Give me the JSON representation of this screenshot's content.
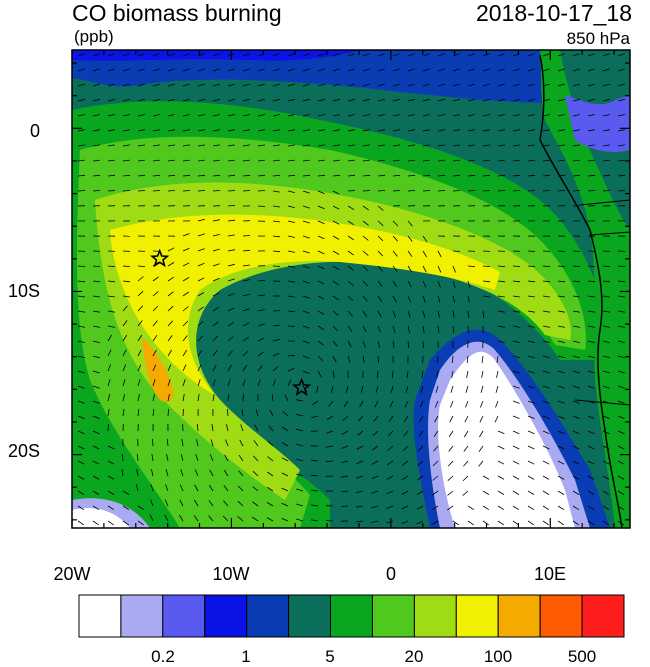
{
  "header": {
    "title": "CO biomass burning",
    "units": "(ppb)",
    "datetime": "2018-10-17_18",
    "level": "850 hPa"
  },
  "map": {
    "lon_ticks": [
      "20W",
      "10W",
      "0",
      "10E"
    ],
    "lat_ticks": [
      "0",
      "10S",
      "20S"
    ],
    "lon_range": [
      -20,
      15
    ],
    "lat_range": [
      -24.5,
      4.8
    ],
    "markers": [
      {
        "name": "star-marker-west",
        "lon": -14.5,
        "lat": -8.0
      },
      {
        "name": "star-marker-center",
        "lon": -5.6,
        "lat": -15.9
      }
    ]
  },
  "colorbar": {
    "colors": [
      "#ffffff",
      "#aaaaf2",
      "#5a5af0",
      "#0a14e6",
      "#0a3cb4",
      "#0a6e5a",
      "#0aa61e",
      "#50c81e",
      "#a0dc14",
      "#f0f000",
      "#f5aa00",
      "#ff5a00",
      "#ff1e1e"
    ],
    "tick_labels": [
      "0.2",
      "1",
      "5",
      "20",
      "100",
      "500"
    ]
  }
}
